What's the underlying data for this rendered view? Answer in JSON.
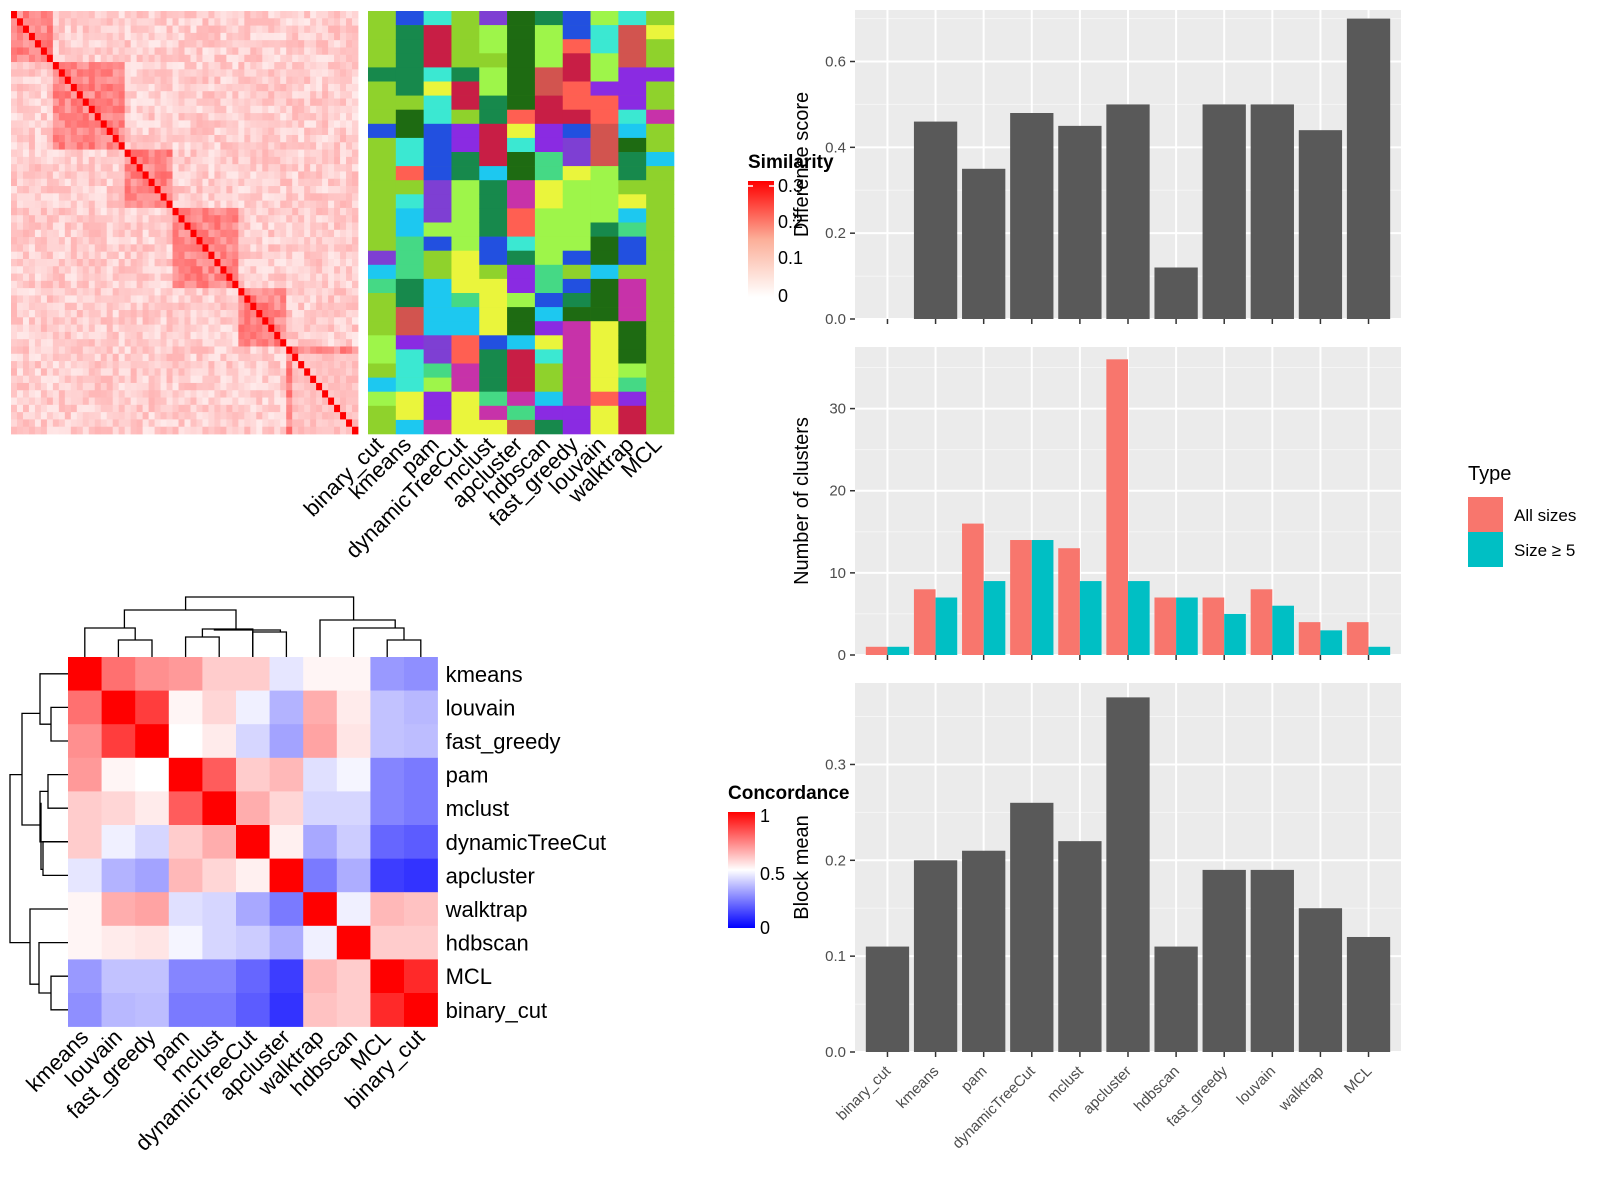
{
  "similarity_heatmap": {
    "legend_title": "Similarity",
    "legend_ticks": [
      "0.3",
      "0.2",
      "0.1",
      "0"
    ],
    "columns": [
      "binary_cut",
      "kmeans",
      "pam",
      "dynamicTreeCut",
      "mclust",
      "apcluster",
      "hdbscan",
      "fast_greedy",
      "louvain",
      "walktrap",
      "MCL"
    ]
  },
  "concordance_heatmap": {
    "legend_title": "Concordance",
    "legend_ticks": [
      "1",
      "0.5",
      "0"
    ],
    "order": [
      "kmeans",
      "louvain",
      "fast_greedy",
      "pam",
      "mclust",
      "dynamicTreeCut",
      "apcluster",
      "walktrap",
      "hdbscan",
      "MCL",
      "binary_cut"
    ]
  },
  "legend": {
    "title": "Type",
    "items": [
      {
        "label": "All sizes",
        "color": "#F8766D"
      },
      {
        "label": "Size ≥ 5",
        "color": "#00BFC4"
      }
    ]
  },
  "chart_data": [
    {
      "type": "heatmap",
      "title": "Concordance",
      "rows": [
        "kmeans",
        "louvain",
        "fast_greedy",
        "pam",
        "mclust",
        "dynamicTreeCut",
        "apcluster",
        "walktrap",
        "hdbscan",
        "MCL",
        "binary_cut"
      ],
      "columns": [
        "kmeans",
        "louvain",
        "fast_greedy",
        "pam",
        "mclust",
        "dynamicTreeCut",
        "apcluster",
        "walktrap",
        "hdbscan",
        "MCL",
        "binary_cut"
      ],
      "values": [
        [
          1.0,
          0.78,
          0.72,
          0.7,
          0.6,
          0.6,
          0.45,
          0.52,
          0.52,
          0.3,
          0.28
        ],
        [
          0.78,
          1.0,
          0.88,
          0.52,
          0.58,
          0.47,
          0.35,
          0.66,
          0.54,
          0.38,
          0.36
        ],
        [
          0.72,
          0.88,
          1.0,
          0.5,
          0.54,
          0.42,
          0.32,
          0.68,
          0.55,
          0.38,
          0.37
        ],
        [
          0.7,
          0.52,
          0.5,
          1.0,
          0.82,
          0.6,
          0.64,
          0.44,
          0.48,
          0.26,
          0.24
        ],
        [
          0.6,
          0.58,
          0.54,
          0.82,
          1.0,
          0.66,
          0.58,
          0.42,
          0.42,
          0.26,
          0.24
        ],
        [
          0.6,
          0.47,
          0.42,
          0.6,
          0.66,
          1.0,
          0.53,
          0.33,
          0.4,
          0.2,
          0.18
        ],
        [
          0.45,
          0.35,
          0.32,
          0.64,
          0.58,
          0.53,
          1.0,
          0.24,
          0.34,
          0.12,
          0.1
        ],
        [
          0.52,
          0.66,
          0.68,
          0.44,
          0.42,
          0.33,
          0.24,
          1.0,
          0.47,
          0.64,
          0.62
        ],
        [
          0.52,
          0.54,
          0.55,
          0.48,
          0.42,
          0.4,
          0.34,
          0.47,
          1.0,
          0.6,
          0.6
        ],
        [
          0.3,
          0.38,
          0.38,
          0.26,
          0.26,
          0.2,
          0.12,
          0.64,
          0.6,
          1.0,
          0.92
        ],
        [
          0.28,
          0.36,
          0.37,
          0.24,
          0.24,
          0.18,
          0.1,
          0.62,
          0.6,
          0.92,
          1.0
        ]
      ],
      "range": [
        0,
        1
      ]
    },
    {
      "type": "bar",
      "categories": [
        "binary_cut",
        "kmeans",
        "pam",
        "dynamicTreeCut",
        "mclust",
        "apcluster",
        "hdbscan",
        "fast_greedy",
        "louvain",
        "walktrap",
        "MCL"
      ],
      "values": [
        0,
        0.46,
        0.35,
        0.48,
        0.45,
        0.5,
        0.12,
        0.5,
        0.5,
        0.44,
        0.7
      ],
      "ylabel": "Difference score",
      "yticks": [
        0.0,
        0.2,
        0.4,
        0.6
      ],
      "ylim": [
        0,
        0.72
      ]
    },
    {
      "type": "bar",
      "categories": [
        "binary_cut",
        "kmeans",
        "pam",
        "dynamicTreeCut",
        "mclust",
        "apcluster",
        "hdbscan",
        "fast_greedy",
        "louvain",
        "walktrap",
        "MCL"
      ],
      "series": [
        {
          "name": "All sizes",
          "values": [
            1,
            8,
            16,
            14,
            13,
            36,
            7,
            7,
            8,
            4,
            4
          ]
        },
        {
          "name": "Size ≥ 5",
          "values": [
            1,
            7,
            9,
            14,
            9,
            9,
            7,
            5,
            6,
            3,
            1
          ]
        }
      ],
      "ylabel": "Number of clusters",
      "yticks": [
        0,
        10,
        20,
        30
      ],
      "ylim": [
        0,
        37.5
      ]
    },
    {
      "type": "bar",
      "categories": [
        "binary_cut",
        "kmeans",
        "pam",
        "dynamicTreeCut",
        "mclust",
        "apcluster",
        "hdbscan",
        "fast_greedy",
        "louvain",
        "walktrap",
        "MCL"
      ],
      "values": [
        0.11,
        0.2,
        0.21,
        0.26,
        0.22,
        0.37,
        0.11,
        0.19,
        0.19,
        0.15,
        0.12
      ],
      "ylabel": "Block mean",
      "yticks": [
        0.0,
        0.1,
        0.2,
        0.3
      ],
      "ylim": [
        0,
        0.385
      ]
    }
  ]
}
